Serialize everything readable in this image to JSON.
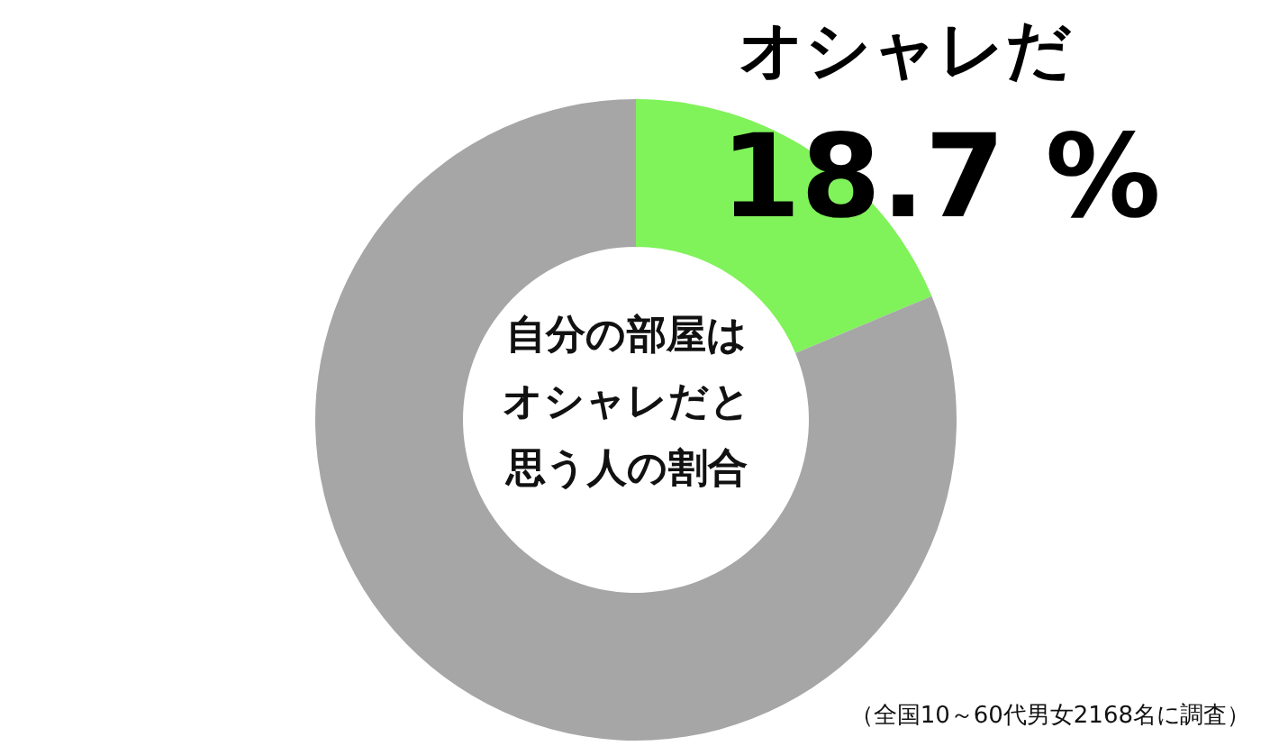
{
  "chart_data": {
    "type": "donut",
    "title": "自分の部屋はオシャレだと思う人の割合",
    "categories": [
      "オシャレだ",
      null
    ],
    "values": [
      18.7,
      81.3
    ],
    "value_labels": [
      "18.7 %",
      null
    ],
    "colors": [
      "#80f25a",
      "#a6a6a6"
    ],
    "annotations": [
      "（全国10～60代男女2168名に調査）"
    ]
  }
}
